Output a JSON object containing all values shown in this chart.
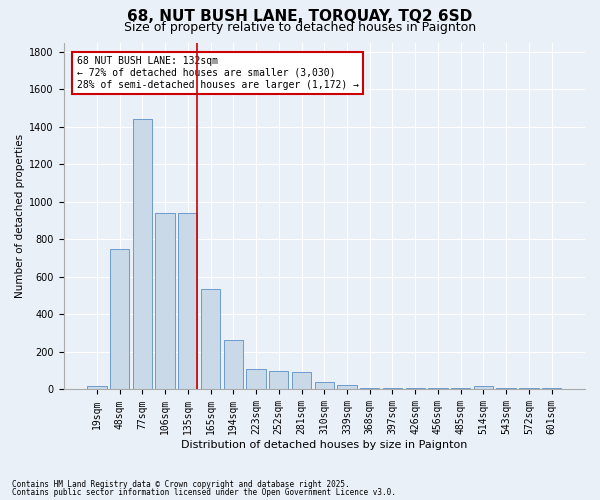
{
  "title1": "68, NUT BUSH LANE, TORQUAY, TQ2 6SD",
  "title2": "Size of property relative to detached houses in Paignton",
  "xlabel": "Distribution of detached houses by size in Paignton",
  "ylabel": "Number of detached properties",
  "categories": [
    "19sqm",
    "48sqm",
    "77sqm",
    "106sqm",
    "135sqm",
    "165sqm",
    "194sqm",
    "223sqm",
    "252sqm",
    "281sqm",
    "310sqm",
    "339sqm",
    "368sqm",
    "397sqm",
    "426sqm",
    "456sqm",
    "485sqm",
    "514sqm",
    "543sqm",
    "572sqm",
    "601sqm"
  ],
  "values": [
    20,
    750,
    1440,
    940,
    940,
    535,
    265,
    110,
    100,
    95,
    40,
    25,
    10,
    8,
    8,
    8,
    8,
    18,
    8,
    8,
    8
  ],
  "bar_color": "#c9d9e8",
  "bar_edge_color": "#5b8fc9",
  "vline_x_index": 4,
  "vline_color": "#cc0000",
  "annotation_text": "68 NUT BUSH LANE: 132sqm\n← 72% of detached houses are smaller (3,030)\n28% of semi-detached houses are larger (1,172) →",
  "annotation_box_color": "#cc0000",
  "ylim": [
    0,
    1850
  ],
  "yticks": [
    0,
    200,
    400,
    600,
    800,
    1000,
    1200,
    1400,
    1600,
    1800
  ],
  "footnote1": "Contains HM Land Registry data © Crown copyright and database right 2025.",
  "footnote2": "Contains public sector information licensed under the Open Government Licence v3.0.",
  "bg_color": "#eaf0f8",
  "plot_bg_color": "#eaf0f8",
  "title1_fontsize": 11,
  "title2_fontsize": 9,
  "xlabel_fontsize": 8,
  "ylabel_fontsize": 7.5,
  "tick_fontsize": 7,
  "annot_fontsize": 7,
  "footnote_fontsize": 5.5
}
